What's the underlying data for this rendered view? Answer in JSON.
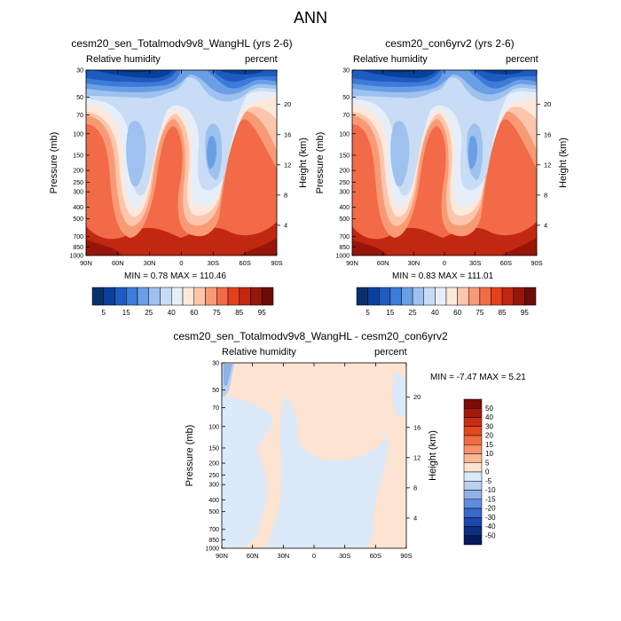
{
  "title": "ANN",
  "panels": [
    {
      "title": "cesm20_sen_Totalmodv9v8_WangHL (yrs 2-6)",
      "left_label": "Relative humidity",
      "right_label": "percent",
      "ylabel": "Pressure (mb)",
      "y2label": "Height (km)",
      "stats": "MIN =   0.78   MAX = 110.46"
    },
    {
      "title": "cesm20_con6yrv2 (yrs 2-6)",
      "left_label": "Relative humidity",
      "right_label": "percent",
      "ylabel": "Pressure (mb)",
      "y2label": "Height (km)",
      "stats": "MIN =   0.83   MAX = 111.01"
    },
    {
      "title": "cesm20_sen_Totalmodv9v8_WangHL - cesm20_con6yrv2",
      "left_label": "Relative humidity",
      "right_label": "percent",
      "ylabel": "Pressure (mb)",
      "y2label": "Height (km)",
      "stats": "MIN =  -7.47   MAX =   5.21"
    }
  ],
  "colorbar_top": {
    "labels": [
      "5",
      "15",
      "25",
      "40",
      "60",
      "75",
      "85",
      "95"
    ],
    "colors": [
      "#08306b",
      "#08419c",
      "#1f5bbf",
      "#3d7bd8",
      "#6a9fe6",
      "#9ec1ef",
      "#c8dcf5",
      "#e6eff9",
      "#fde8dc",
      "#fcc6ac",
      "#f99a76",
      "#f26a47",
      "#e2401e",
      "#c22712",
      "#96160a",
      "#6b0d06"
    ]
  },
  "colorbar_diff": {
    "labels": [
      "50",
      "40",
      "30",
      "20",
      "15",
      "10",
      "5",
      "0",
      "-5",
      "-10",
      "-15",
      "-20",
      "-30",
      "-40",
      "-50"
    ],
    "colors": [
      "#7a0b05",
      "#a5170b",
      "#c92c13",
      "#e4481f",
      "#f26b42",
      "#f8926b",
      "#fbb897",
      "#fde3d2",
      "#dce9f8",
      "#b9d1f1",
      "#8fb2e8",
      "#5f8ddd",
      "#3768cc",
      "#1c47ad",
      "#0d2e86",
      "#06195c"
    ]
  },
  "chart_data": [
    {
      "type": "heatmap",
      "title": "cesm20_sen_Totalmodv9v8_WangHL (yrs 2-6)",
      "variable": "Relative humidity",
      "units": "percent",
      "ylabel": "Pressure (mb)",
      "y2label": "Height (km)",
      "x_ticks": [
        "90N",
        "60N",
        "30N",
        "0",
        "30S",
        "60S",
        "90S"
      ],
      "y_ticks": [
        "30",
        "50",
        "70",
        "100",
        "150",
        "200",
        "250",
        "300",
        "400",
        "500",
        "700",
        "850",
        "1000"
      ],
      "y2_ticks": [
        "20",
        "16",
        "12",
        "8",
        "4"
      ],
      "min": 0.78,
      "max": 110.46,
      "contour_levels": [
        5,
        10,
        15,
        20,
        25,
        30,
        40,
        50,
        60,
        70,
        75,
        80,
        85,
        90,
        95
      ]
    },
    {
      "type": "heatmap",
      "title": "cesm20_con6yrv2 (yrs 2-6)",
      "variable": "Relative humidity",
      "units": "percent",
      "ylabel": "Pressure (mb)",
      "y2label": "Height (km)",
      "x_ticks": [
        "90N",
        "60N",
        "30N",
        "0",
        "30S",
        "60S",
        "90S"
      ],
      "y_ticks": [
        "30",
        "50",
        "70",
        "100",
        "150",
        "200",
        "250",
        "300",
        "400",
        "500",
        "700",
        "850",
        "1000"
      ],
      "y2_ticks": [
        "20",
        "16",
        "12",
        "8",
        "4"
      ],
      "min": 0.83,
      "max": 111.01,
      "contour_levels": [
        5,
        10,
        15,
        20,
        25,
        30,
        40,
        50,
        60,
        70,
        75,
        80,
        85,
        90,
        95
      ]
    },
    {
      "type": "heatmap",
      "title": "cesm20_sen_Totalmodv9v8_WangHL - cesm20_con6yrv2",
      "variable": "Relative humidity",
      "units": "percent",
      "ylabel": "Pressure (mb)",
      "y2label": "Height (km)",
      "x_ticks": [
        "90N",
        "60N",
        "30N",
        "0",
        "30S",
        "60S",
        "90S"
      ],
      "y_ticks": [
        "30",
        "50",
        "70",
        "100",
        "150",
        "200",
        "250",
        "300",
        "400",
        "500",
        "700",
        "850",
        "1000"
      ],
      "y2_ticks": [
        "20",
        "16",
        "12",
        "8",
        "4"
      ],
      "min": -7.47,
      "max": 5.21,
      "contour_levels": [
        -50,
        -40,
        -30,
        -20,
        -15,
        -10,
        -5,
        0,
        5,
        10,
        15,
        20,
        30,
        40,
        50
      ]
    }
  ]
}
